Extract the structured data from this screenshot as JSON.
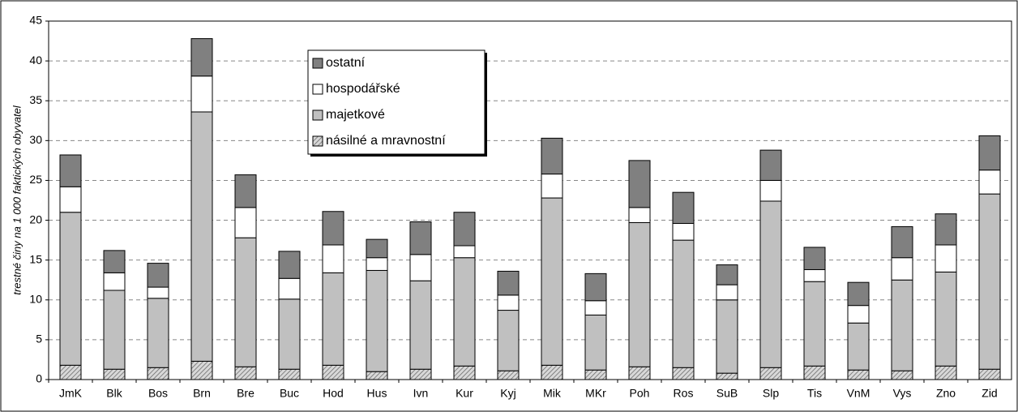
{
  "chart_data": {
    "type": "stacked_bar",
    "y_axis_label": "trestné činy na 1 000 faktických obyvatel",
    "categories": [
      "JmK",
      "Blk",
      "Bos",
      "Brn",
      "Bre",
      "Buc",
      "Hod",
      "Hus",
      "Ivn",
      "Kur",
      "Kyj",
      "Mik",
      "MKr",
      "Poh",
      "Ros",
      "SuB",
      "Slp",
      "Tis",
      "VnM",
      "Vys",
      "Zno",
      "Zid"
    ],
    "series": [
      {
        "name": "násilné a mravnostní",
        "color": "#c8c8c8",
        "pattern": "hatch",
        "values": [
          1.8,
          1.3,
          1.5,
          2.3,
          1.6,
          1.3,
          1.8,
          1.0,
          1.3,
          1.7,
          1.1,
          1.8,
          1.2,
          1.6,
          1.5,
          0.8,
          1.5,
          1.7,
          1.2,
          1.1,
          1.7,
          1.3
        ]
      },
      {
        "name": "majetkové",
        "color": "#c0c0c0",
        "values": [
          19.2,
          9.9,
          8.7,
          31.3,
          16.2,
          8.8,
          11.6,
          12.7,
          11.1,
          13.6,
          7.6,
          21.0,
          6.9,
          18.1,
          16.0,
          9.2,
          20.9,
          10.6,
          5.9,
          11.4,
          11.8,
          22.0
        ]
      },
      {
        "name": "hospodářské",
        "color": "#ffffff",
        "values": [
          3.2,
          2.2,
          1.4,
          4.5,
          3.8,
          2.6,
          3.5,
          1.6,
          3.3,
          1.5,
          1.9,
          3.0,
          1.8,
          1.9,
          2.1,
          1.9,
          2.6,
          1.5,
          2.2,
          2.8,
          3.4,
          3.0
        ]
      },
      {
        "name": "ostatní",
        "color": "#808080",
        "values": [
          4.0,
          2.8,
          3.0,
          4.7,
          4.1,
          3.4,
          4.2,
          2.3,
          4.1,
          4.2,
          3.0,
          4.5,
          3.4,
          5.9,
          3.9,
          2.5,
          3.8,
          2.8,
          2.9,
          3.9,
          3.9,
          4.3
        ]
      }
    ],
    "ylim": [
      0,
      45
    ],
    "yticks": [
      0,
      5,
      10,
      15,
      20,
      25,
      30,
      35,
      40,
      45
    ],
    "grid": true
  }
}
